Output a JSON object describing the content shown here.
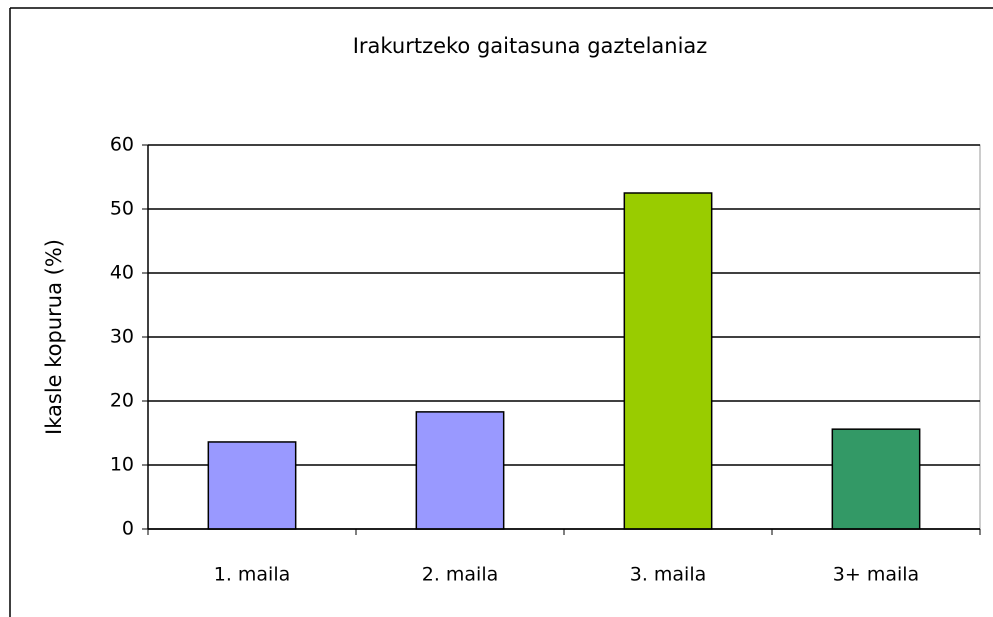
{
  "chart_data": {
    "type": "bar",
    "title": "Irakurtzeko gaitasuna gaztelaniaz",
    "ylabel": "Ikasle kopurua (%)",
    "categories": [
      "1. maila",
      "2. maila",
      "3. maila",
      "3+ maila"
    ],
    "values": [
      13.6,
      18.3,
      52.5,
      15.6
    ],
    "colors": [
      "#9999ff",
      "#9999ff",
      "#99cc00",
      "#339966"
    ],
    "ylim": [
      0,
      60
    ],
    "yticks": [
      0,
      10,
      20,
      30,
      40,
      50,
      60
    ],
    "grid": true
  }
}
